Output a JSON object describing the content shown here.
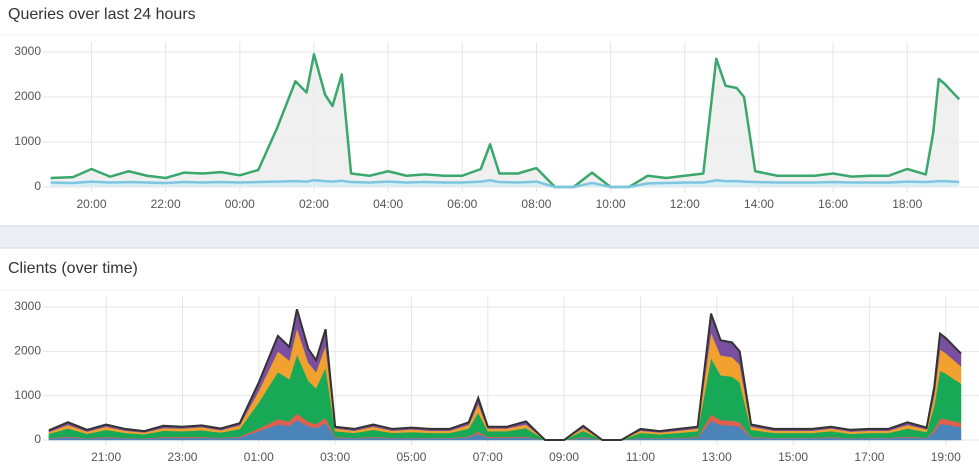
{
  "chart_data": [
    {
      "type": "line",
      "title": "Queries over last 24 hours",
      "x": [
        18.9,
        19.5,
        20,
        20.5,
        21,
        21.5,
        22,
        22.5,
        23,
        23.5,
        24,
        24.5,
        25,
        25.5,
        25.8,
        26,
        26.3,
        26.5,
        26.75,
        27,
        27.5,
        28,
        28.5,
        29,
        29.5,
        30,
        30.5,
        30.75,
        31,
        31.5,
        32,
        32.5,
        33,
        33.5,
        34,
        34.5,
        35,
        35.5,
        36,
        36.5,
        36.85,
        37.1,
        37.4,
        37.6,
        37.9,
        38.5,
        39,
        39.5,
        40,
        40.5,
        41,
        41.5,
        42,
        42.5,
        42.7,
        42.85,
        43,
        43.4
      ],
      "series": [
        {
          "color": "#3aa76d",
          "fill": "#ececec",
          "values": [
            200,
            220,
            400,
            230,
            350,
            250,
            200,
            320,
            300,
            330,
            260,
            380,
            1300,
            2350,
            2100,
            2950,
            2050,
            1800,
            2500,
            300,
            250,
            350,
            250,
            280,
            250,
            250,
            400,
            950,
            300,
            300,
            420,
            0,
            0,
            320,
            0,
            0,
            250,
            200,
            250,
            300,
            2850,
            2250,
            2200,
            2000,
            350,
            250,
            250,
            250,
            300,
            230,
            250,
            250,
            400,
            280,
            1200,
            2400,
            2300,
            1950
          ]
        },
        {
          "color": "#7cc6e0",
          "fill": "#d4edf6",
          "values": [
            100,
            90,
            120,
            100,
            110,
            100,
            90,
            110,
            100,
            110,
            100,
            110,
            120,
            130,
            120,
            150,
            130,
            120,
            140,
            110,
            100,
            120,
            100,
            110,
            100,
            100,
            120,
            150,
            110,
            100,
            120,
            0,
            0,
            90,
            0,
            0,
            80,
            90,
            100,
            100,
            150,
            130,
            130,
            120,
            110,
            100,
            100,
            100,
            110,
            100,
            100,
            100,
            120,
            110,
            120,
            130,
            130,
            110
          ]
        }
      ],
      "xlim": [
        18.8,
        43.45
      ],
      "ylim": [
        0,
        3000
      ],
      "xticks": [
        {
          "value": 20,
          "label": "20:00"
        },
        {
          "value": 22,
          "label": "22:00"
        },
        {
          "value": 24,
          "label": "00:00"
        },
        {
          "value": 26,
          "label": "02:00"
        },
        {
          "value": 28,
          "label": "04:00"
        },
        {
          "value": 30,
          "label": "06:00"
        },
        {
          "value": 32,
          "label": "08:00"
        },
        {
          "value": 34,
          "label": "10:00"
        },
        {
          "value": 36,
          "label": "12:00"
        },
        {
          "value": 38,
          "label": "14:00"
        },
        {
          "value": 40,
          "label": "16:00"
        },
        {
          "value": 42,
          "label": "18:00"
        }
      ],
      "yticks": [
        0,
        1000,
        2000,
        3000
      ],
      "grid": true
    },
    {
      "type": "stacked-area",
      "title": "Clients (over time)",
      "x": [
        19.5,
        20,
        20.5,
        21,
        21.5,
        22,
        22.5,
        23,
        23.5,
        24,
        24.5,
        25,
        25.5,
        25.8,
        26,
        26.3,
        26.5,
        26.75,
        27,
        27.5,
        28,
        28.5,
        29,
        29.5,
        30,
        30.5,
        30.75,
        31,
        31.5,
        32,
        32.5,
        33,
        33.5,
        34,
        34.5,
        35,
        35.5,
        36,
        36.5,
        36.85,
        37.1,
        37.4,
        37.6,
        37.9,
        38.5,
        39,
        39.5,
        40,
        40.5,
        41,
        41.5,
        42,
        42.5,
        42.7,
        42.85,
        43,
        43.4
      ],
      "series": [
        {
          "color": "#4a84b8",
          "values": [
            30,
            60,
            30,
            50,
            40,
            30,
            50,
            50,
            50,
            40,
            60,
            200,
            350,
            320,
            450,
            310,
            270,
            380,
            50,
            40,
            50,
            40,
            40,
            40,
            40,
            60,
            140,
            50,
            50,
            60,
            0,
            0,
            50,
            0,
            0,
            40,
            30,
            40,
            50,
            430,
            340,
            330,
            300,
            50,
            40,
            40,
            40,
            50,
            30,
            40,
            40,
            60,
            40,
            180,
            360,
            350,
            290
          ]
        },
        {
          "color": "#e0604e",
          "values": [
            10,
            20,
            10,
            20,
            10,
            10,
            20,
            20,
            20,
            10,
            20,
            60,
            120,
            100,
            150,
            100,
            90,
            120,
            20,
            10,
            20,
            10,
            10,
            10,
            10,
            20,
            50,
            20,
            20,
            20,
            0,
            0,
            20,
            0,
            0,
            10,
            10,
            10,
            20,
            140,
            110,
            110,
            100,
            20,
            10,
            10,
            10,
            20,
            10,
            10,
            10,
            20,
            10,
            60,
            120,
            120,
            100
          ]
        },
        {
          "color": "#18a957",
          "values": [
            100,
            180,
            100,
            160,
            110,
            90,
            140,
            130,
            150,
            120,
            170,
            590,
            1060,
            950,
            1330,
            920,
            810,
            1130,
            130,
            110,
            160,
            110,
            130,
            110,
            110,
            180,
            430,
            130,
            130,
            190,
            0,
            0,
            140,
            0,
            0,
            110,
            90,
            110,
            130,
            1280,
            1010,
            990,
            900,
            160,
            110,
            110,
            110,
            130,
            100,
            110,
            110,
            180,
            130,
            540,
            1080,
            1030,
            880
          ]
        },
        {
          "color": "#f0a12e",
          "values": [
            40,
            80,
            50,
            70,
            50,
            40,
            60,
            60,
            70,
            50,
            80,
            260,
            470,
            420,
            590,
            410,
            360,
            500,
            60,
            50,
            70,
            50,
            60,
            50,
            50,
            80,
            190,
            60,
            60,
            80,
            0,
            0,
            60,
            0,
            0,
            50,
            40,
            50,
            60,
            570,
            450,
            440,
            400,
            70,
            50,
            50,
            50,
            60,
            50,
            50,
            50,
            80,
            60,
            240,
            480,
            460,
            390
          ]
        },
        {
          "color": "#7a4fa0",
          "values": [
            40,
            60,
            40,
            50,
            40,
            30,
            50,
            40,
            40,
            40,
            50,
            190,
            350,
            310,
            430,
            310,
            270,
            370,
            40,
            40,
            50,
            40,
            40,
            40,
            40,
            60,
            140,
            40,
            40,
            70,
            0,
            0,
            50,
            0,
            0,
            40,
            30,
            40,
            40,
            430,
            340,
            330,
            300,
            50,
            40,
            40,
            40,
            40,
            40,
            40,
            40,
            60,
            40,
            180,
            360,
            340,
            290
          ]
        }
      ],
      "xlim": [
        19.45,
        43.4
      ],
      "ylim": [
        0,
        3000
      ],
      "xticks": [
        {
          "value": 21,
          "label": "21:00"
        },
        {
          "value": 23,
          "label": "23:00"
        },
        {
          "value": 25,
          "label": "01:00"
        },
        {
          "value": 27,
          "label": "03:00"
        },
        {
          "value": 29,
          "label": "05:00"
        },
        {
          "value": 31,
          "label": "07:00"
        },
        {
          "value": 33,
          "label": "09:00"
        },
        {
          "value": 35,
          "label": "11:00"
        },
        {
          "value": 37,
          "label": "13:00"
        },
        {
          "value": 39,
          "label": "15:00"
        },
        {
          "value": 41,
          "label": "17:00"
        },
        {
          "value": 43,
          "label": "19:00"
        }
      ],
      "yticks": [
        0,
        1000,
        2000,
        3000
      ],
      "grid": true
    }
  ]
}
